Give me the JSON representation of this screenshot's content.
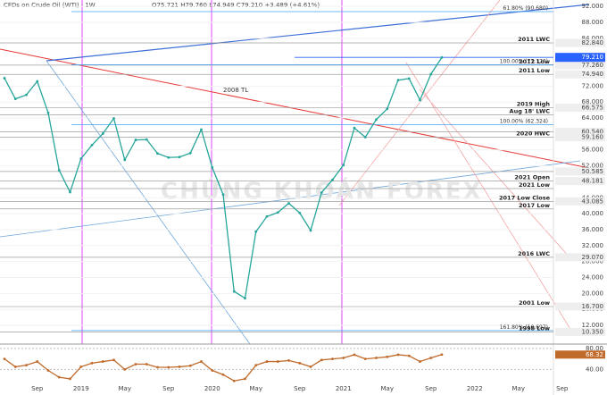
{
  "chart_data": [
    {
      "type": "line",
      "title": "CFDs on Crude Oil (WTI) · 1W",
      "subtitle": "O75.721 H79.760 L74.949 C79.210 +3.489 (+4.61%)",
      "watermark": "CHỨNG KHOÁN FOREX",
      "categories": [
        null,
        null,
        null,
        "Sep",
        null,
        null,
        null,
        "2019",
        null,
        null,
        null,
        "May",
        null,
        null,
        null,
        "Sep",
        null,
        null,
        null,
        "2020",
        null,
        null,
        null,
        "May",
        null,
        null,
        null,
        "Sep",
        null,
        null,
        null,
        "2021",
        null,
        null,
        null,
        "May",
        null,
        null,
        null,
        "Sep",
        null,
        null,
        null,
        "2022",
        null,
        null,
        null,
        "May",
        null,
        null,
        null,
        "Sep"
      ],
      "series": [
        {
          "name": "WTI",
          "color": "#26a69a",
          "values": [
            74,
            68.8,
            69.8,
            73.2,
            65.3,
            50.9,
            45.4,
            53.8,
            57.2,
            60.1,
            63.9,
            53.5,
            58.5,
            58.6,
            55.1,
            54.1,
            54.2,
            55.2,
            61.1,
            51.6,
            44.8,
            20.5,
            18.8,
            35.5,
            39.3,
            40.3,
            42.6,
            40.2,
            35.8,
            45.3,
            48.5,
            52.2,
            61.5,
            59.2,
            63.6,
            66.3,
            73.5,
            73.9,
            68.5,
            75.0,
            79.2,
            null,
            null,
            null,
            null,
            null,
            null,
            null,
            null,
            null,
            null,
            null
          ]
        }
      ],
      "ylim": [
        7.3,
        93.6
      ],
      "yticks": [
        {
          "value": 12,
          "label": "12.000"
        },
        {
          "value": 16,
          "label": "16.000"
        },
        {
          "value": 20,
          "label": "20.000"
        },
        {
          "value": 24,
          "label": "24.000"
        },
        {
          "value": 28,
          "label": "28.000"
        },
        {
          "value": 32,
          "label": "32.000"
        },
        {
          "value": 36,
          "label": "36.000"
        },
        {
          "value": 40,
          "label": "40.000"
        },
        {
          "value": 44,
          "label": "44.000"
        },
        {
          "value": 52,
          "label": "52.000"
        },
        {
          "value": 56,
          "label": "56.000"
        },
        {
          "value": 64,
          "label": "64.000"
        },
        {
          "value": 68,
          "label": "68.000"
        },
        {
          "value": 72,
          "label": "72.000"
        },
        {
          "value": 84,
          "label": "84.000"
        },
        {
          "value": 88,
          "label": "88.000"
        },
        {
          "value": 92,
          "label": "92.000"
        }
      ],
      "last_price": {
        "value": 79.21,
        "label": "79.210"
      },
      "levels": [
        {
          "value": 82.84,
          "label": "82.840",
          "name": "2011 LWC"
        },
        {
          "value": 77.26,
          "label": "77.260",
          "name": "2012 Low"
        },
        {
          "value": 74.94,
          "label": "74.940",
          "name": "2011 Low"
        },
        {
          "value": 66.575,
          "label": "66.575",
          "name": "2019 High"
        },
        {
          "value": 64.8,
          "name": "Aug 18' LWC"
        },
        {
          "value": 60.54,
          "label": "60.540"
        },
        {
          "value": 59.16,
          "label": "59.160",
          "name": "2020 HWC"
        },
        {
          "value": 50.585,
          "label": "50.585"
        },
        {
          "value": 48.181,
          "label": "48.181",
          "name": "2021 Open"
        },
        {
          "value": 46.3,
          "name": "2021 Low"
        },
        {
          "value": 43.085,
          "label": "43.085",
          "name": "2017 Low Close"
        },
        {
          "value": 41.2,
          "name": "2017 Low"
        },
        {
          "value": 29.07,
          "label": "29.070",
          "name": "2016 LWC"
        },
        {
          "value": 16.7,
          "label": "16.700",
          "name": "2001 Low"
        },
        {
          "value": 10.35,
          "label": "10.350",
          "name": "1998 Low"
        }
      ],
      "fibs": [
        {
          "value": 90.68,
          "label": "61.80% (90.680)"
        },
        {
          "value": 77.376,
          "label": "100.00% (77.376)"
        },
        {
          "value": 62.324,
          "label": "100.00% (62.324)"
        },
        {
          "value": 10.697,
          "label": "161.80% (10.697)"
        }
      ],
      "annotations": [
        "2008 TL"
      ]
    },
    {
      "type": "line",
      "series": [
        {
          "name": "RSI",
          "color": "#c06a2b",
          "values": [
            60,
            45,
            48,
            55,
            38,
            25,
            22,
            45,
            52,
            55,
            58,
            40,
            50,
            50,
            44,
            44,
            45,
            47,
            55,
            38,
            30,
            18,
            22,
            48,
            55,
            55,
            57,
            52,
            45,
            58,
            60,
            62,
            68,
            60,
            62,
            64,
            68,
            66,
            55,
            62,
            68.32,
            null,
            null,
            null,
            null,
            null,
            null,
            null,
            null,
            null,
            null,
            null
          ],
          "value_labels_last": "68.32"
        }
      ],
      "ylim": [
        15,
        85
      ],
      "yticks": [
        {
          "value": 80,
          "label": "80.00"
        },
        {
          "value": 40,
          "label": "40.00"
        }
      ]
    }
  ]
}
